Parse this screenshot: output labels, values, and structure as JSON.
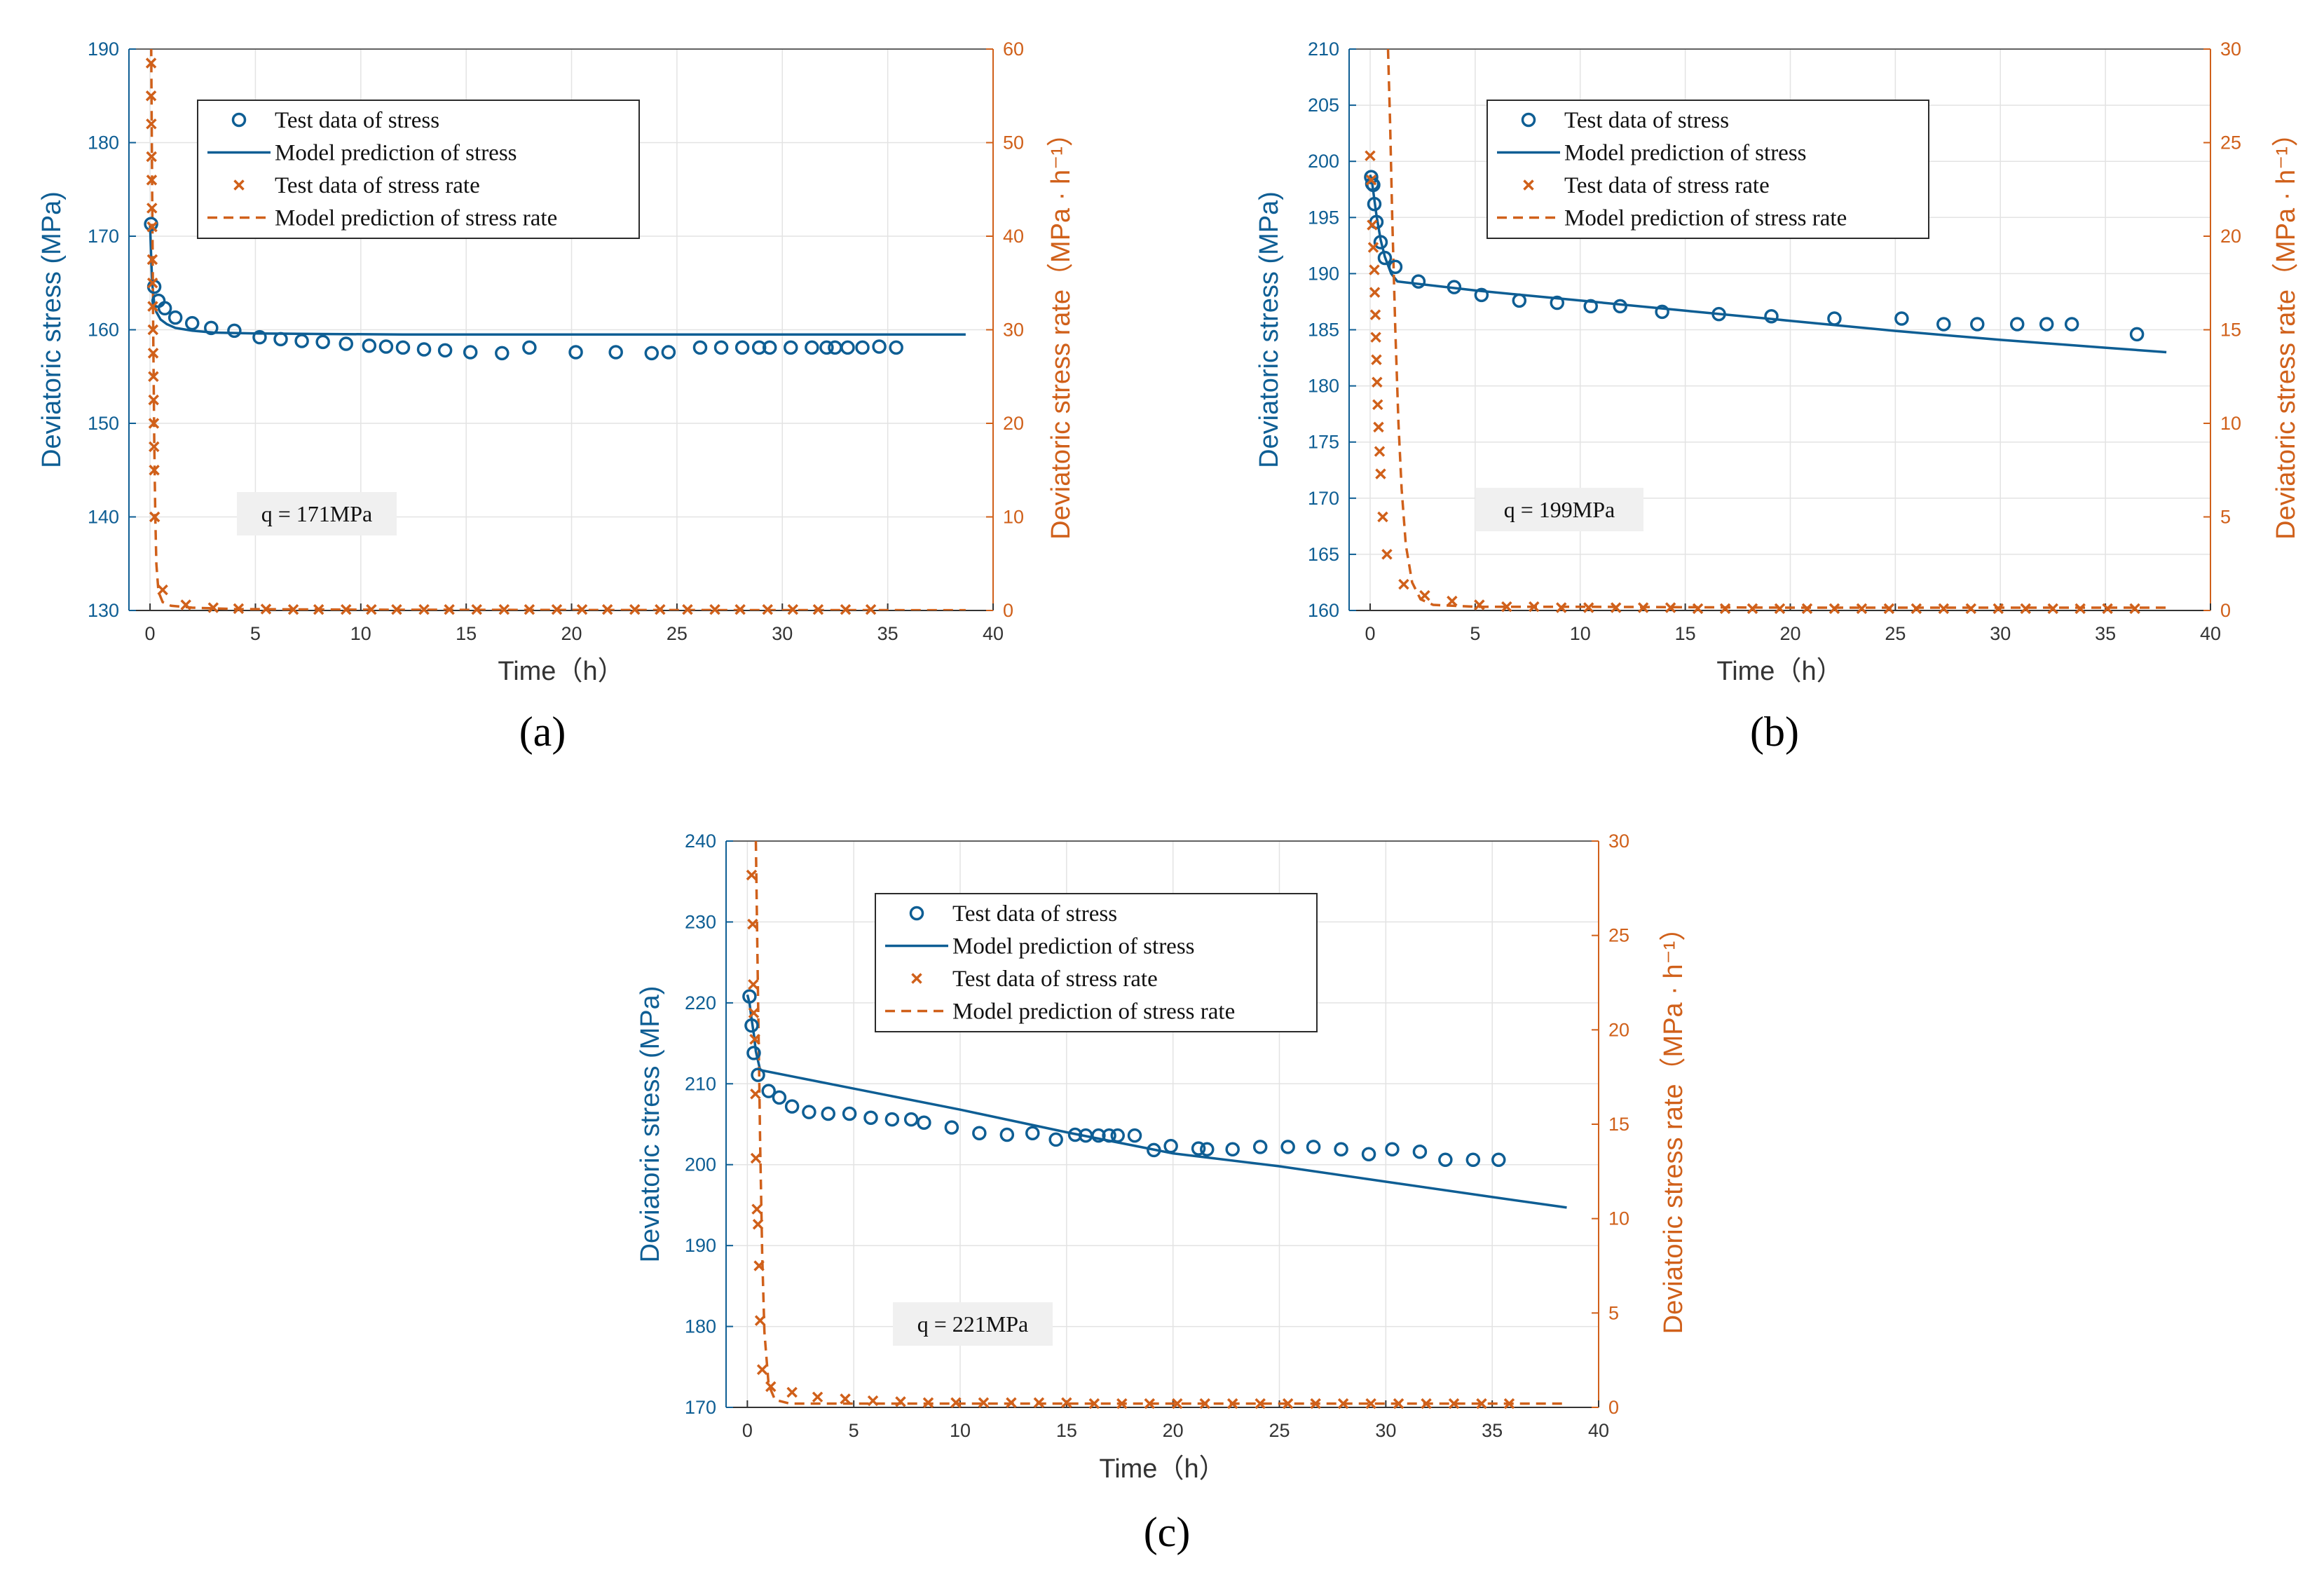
{
  "colors": {
    "stress": "#0e5e94",
    "rate": "#d0601a",
    "grid": "#e3e3e3",
    "axis": "#333333"
  },
  "legend": {
    "test_stress": "Test data of stress",
    "model_stress": "Model prediction of stress",
    "test_rate": "Test data of stress rate",
    "model_rate": "Model prediction of stress rate"
  },
  "chart_data": [
    {
      "id": "a",
      "type": "line",
      "caption": "(a)",
      "xlabel": "Time（h）",
      "ylabel_left": "Deviatoric stress (MPa)",
      "ylabel_right": "Deviatoric stress rate（MPa · h⁻¹）",
      "annotation": "q = 171MPa",
      "xlim": [
        -1,
        40
      ],
      "ylim_left": [
        130,
        190
      ],
      "ylim_right": [
        0,
        60
      ],
      "xticks": [
        0,
        5,
        10,
        15,
        20,
        25,
        30,
        35,
        40
      ],
      "yticks_left": [
        130,
        140,
        150,
        160,
        170,
        180,
        190
      ],
      "yticks_right": [
        0,
        10,
        20,
        30,
        40,
        50,
        60
      ],
      "series": [
        {
          "name": "Test data of stress",
          "axis": "left",
          "style": "circle",
          "x": [
            0.05,
            0.2,
            0.4,
            0.7,
            1.2,
            2,
            2.9,
            4,
            5.2,
            6.2,
            7.2,
            8.2,
            9.3,
            10.4,
            11.2,
            12,
            13,
            14,
            15.2,
            16.7,
            18,
            20.2,
            22.1,
            23.8,
            24.6,
            26.1,
            27.1,
            28.1,
            28.9,
            29.4,
            30.4,
            31.4,
            32.1,
            32.5,
            33.1,
            33.8,
            34.6,
            35.4
          ],
          "y": [
            171.3,
            164.6,
            163.1,
            162.3,
            161.3,
            160.7,
            160.2,
            159.9,
            159.2,
            159.0,
            158.8,
            158.7,
            158.5,
            158.3,
            158.2,
            158.1,
            157.9,
            157.8,
            157.6,
            157.5,
            158.1,
            157.6,
            157.6,
            157.5,
            157.6,
            158.1,
            158.1,
            158.1,
            158.1,
            158.1,
            158.1,
            158.1,
            158.1,
            158.1,
            158.1,
            158.1,
            158.2,
            158.1
          ]
        },
        {
          "name": "Model prediction of stress",
          "axis": "left",
          "style": "solid",
          "x": [
            0,
            0.05,
            0.1,
            0.2,
            0.3,
            0.5,
            0.8,
            1.2,
            2,
            3,
            5,
            8,
            12,
            20,
            30,
            38.7
          ],
          "y": [
            171.3,
            168.0,
            165.0,
            162.8,
            161.9,
            161.1,
            160.6,
            160.2,
            159.9,
            159.7,
            159.6,
            159.55,
            159.5,
            159.5,
            159.5,
            159.5
          ]
        },
        {
          "name": "Test data of stress rate",
          "axis": "right",
          "style": "cross",
          "x": [
            0.05,
            0.05,
            0.06,
            0.07,
            0.08,
            0.09,
            0.1,
            0.11,
            0.12,
            0.13,
            0.14,
            0.15,
            0.16,
            0.17,
            0.18,
            0.19,
            0.2,
            0.22,
            0.6,
            1.7,
            3,
            4.2,
            5.5,
            6.8,
            8,
            9.3,
            10.5,
            11.7,
            13,
            14.2,
            15.5,
            16.8,
            18,
            19.3,
            20.5,
            21.7,
            23,
            24.2,
            25.5,
            26.8,
            28,
            29.3,
            30.5,
            31.7,
            33,
            34.2
          ],
          "y": [
            58.5,
            55,
            52,
            48.5,
            46,
            43,
            41,
            37.5,
            35,
            32.5,
            30,
            27.5,
            25,
            22.5,
            20,
            17.5,
            15,
            10,
            2.2,
            0.6,
            0.3,
            0.2,
            0.15,
            0.1,
            0.1,
            0.1,
            0.1,
            0.1,
            0.1,
            0.1,
            0.1,
            0.1,
            0.1,
            0.1,
            0.1,
            0.1,
            0.1,
            0.1,
            0.1,
            0.1,
            0.1,
            0.1,
            0.1,
            0.1,
            0.1,
            0.1
          ]
        },
        {
          "name": "Model prediction of stress rate",
          "axis": "right",
          "style": "dashed",
          "x": [
            0.05,
            0.1,
            0.15,
            0.2,
            0.25,
            0.3,
            0.4,
            0.6,
            1,
            2,
            4,
            10,
            20,
            30,
            38.7
          ],
          "y": [
            62,
            45,
            30,
            18,
            10,
            5,
            2,
            0.9,
            0.5,
            0.3,
            0.15,
            0.08,
            0.05,
            0.04,
            0.03
          ]
        }
      ]
    },
    {
      "id": "b",
      "type": "line",
      "caption": "(b)",
      "xlabel": "Time（h）",
      "ylabel_left": "Deviatoric stress (MPa)",
      "ylabel_right": "Deviatoric stress rate（MPa · h⁻¹）",
      "annotation": "q = 199MPa",
      "xlim": [
        -1,
        40
      ],
      "ylim_left": [
        160,
        210
      ],
      "ylim_right": [
        0,
        30
      ],
      "xticks": [
        0,
        5,
        10,
        15,
        20,
        25,
        30,
        35,
        40
      ],
      "yticks_left": [
        160,
        165,
        170,
        175,
        180,
        185,
        190,
        195,
        200,
        205,
        210
      ],
      "yticks_right": [
        0,
        5,
        10,
        15,
        20,
        25,
        30
      ],
      "series": [
        {
          "name": "Test data of stress",
          "axis": "left",
          "style": "circle",
          "x": [
            0.05,
            0.1,
            0.15,
            0.2,
            0.3,
            0.5,
            0.7,
            1.2,
            2.3,
            4,
            5.3,
            7.1,
            8.9,
            10.5,
            11.9,
            13.9,
            16.6,
            19.1,
            22.1,
            25.3,
            27.3,
            28.9,
            30.8,
            32.2,
            33.4,
            36.5
          ],
          "y": [
            198.6,
            198.0,
            197.9,
            196.2,
            194.6,
            192.8,
            191.4,
            190.6,
            189.3,
            188.8,
            188.1,
            187.6,
            187.4,
            187.1,
            187.1,
            186.6,
            186.4,
            186.2,
            186.0,
            186.0,
            185.5,
            185.5,
            185.5,
            185.5,
            185.5,
            184.6
          ]
        },
        {
          "name": "Model prediction of stress",
          "axis": "left",
          "style": "solid",
          "x": [
            0,
            0.1,
            0.2,
            0.3,
            0.5,
            0.7,
            1,
            1.3,
            5,
            10,
            15,
            20,
            25,
            30,
            35,
            37.9
          ],
          "y": [
            198.8,
            198.0,
            196.6,
            195.2,
            193.0,
            191.5,
            190.0,
            189.3,
            188.5,
            187.6,
            186.7,
            185.8,
            184.9,
            184.1,
            183.4,
            183.0
          ]
        },
        {
          "name": "Test data of stress rate",
          "axis": "right",
          "style": "cross",
          "x": [
            0,
            0.05,
            0.1,
            0.15,
            0.2,
            0.22,
            0.25,
            0.27,
            0.3,
            0.33,
            0.36,
            0.4,
            0.45,
            0.5,
            0.6,
            0.8,
            1.6,
            2.6,
            3.9,
            5.2,
            6.5,
            7.8,
            9.1,
            10.4,
            11.7,
            13,
            14.3,
            15.6,
            16.9,
            18.2,
            19.5,
            20.8,
            22.1,
            23.4,
            24.7,
            26,
            27.3,
            28.6,
            29.9,
            31.2,
            32.5,
            33.8,
            35.1,
            36.4
          ],
          "y": [
            24.3,
            23.0,
            20.6,
            19.4,
            18.2,
            17.0,
            15.8,
            14.6,
            13.4,
            12.2,
            11.0,
            9.8,
            8.5,
            7.3,
            5.0,
            3.0,
            1.4,
            0.8,
            0.5,
            0.3,
            0.2,
            0.2,
            0.15,
            0.15,
            0.15,
            0.15,
            0.15,
            0.1,
            0.1,
            0.1,
            0.1,
            0.1,
            0.1,
            0.1,
            0.1,
            0.1,
            0.1,
            0.1,
            0.1,
            0.1,
            0.1,
            0.1,
            0.1,
            0.1
          ]
        },
        {
          "name": "Model prediction of stress rate",
          "axis": "right",
          "style": "dashed",
          "x": [
            0.85,
            0.95,
            1.05,
            1.2,
            1.35,
            1.5,
            1.7,
            2,
            2.4,
            3,
            5,
            10,
            20,
            30,
            37.9
          ],
          "y": [
            30,
            26,
            21,
            15,
            10,
            6.5,
            3.5,
            1.5,
            0.6,
            0.3,
            0.2,
            0.2,
            0.15,
            0.15,
            0.15
          ]
        }
      ]
    },
    {
      "id": "c",
      "type": "line",
      "caption": "(c)",
      "xlabel": "Time（h）",
      "ylabel_left": "Deviatoric stress (MPa)",
      "ylabel_right": "Deviatoric stress rate（MPa · h⁻¹）",
      "annotation": "q = 221MPa",
      "xlim": [
        -1,
        40
      ],
      "ylim_left": [
        170,
        240
      ],
      "ylim_right": [
        0,
        30
      ],
      "xticks": [
        0,
        5,
        10,
        15,
        20,
        25,
        30,
        35,
        40
      ],
      "yticks_left": [
        170,
        180,
        190,
        200,
        210,
        220,
        230,
        240
      ],
      "yticks_right": [
        0,
        5,
        10,
        15,
        20,
        25,
        30
      ],
      "series": [
        {
          "name": "Test data of stress",
          "axis": "left",
          "style": "circle",
          "x": [
            0.1,
            0.2,
            0.3,
            0.5,
            1,
            1.5,
            2.1,
            2.9,
            3.8,
            4.8,
            5.8,
            6.8,
            7.7,
            8.3,
            9.6,
            10.9,
            12.2,
            13.4,
            14.5,
            15.4,
            15.9,
            16.5,
            17,
            17.4,
            18.2,
            19.1,
            19.9,
            21.2,
            21.6,
            22.8,
            24.1,
            25.4,
            26.6,
            27.9,
            29.2,
            30.3,
            31.6,
            32.8,
            34.1,
            35.3
          ],
          "y": [
            220.8,
            217.2,
            213.8,
            211.1,
            209.1,
            208.3,
            207.2,
            206.5,
            206.3,
            206.3,
            205.8,
            205.6,
            205.6,
            205.2,
            204.6,
            203.9,
            203.7,
            203.9,
            203.1,
            203.7,
            203.6,
            203.6,
            203.6,
            203.6,
            203.6,
            201.8,
            202.3,
            202.0,
            201.9,
            201.9,
            202.2,
            202.2,
            202.2,
            201.9,
            201.3,
            201.9,
            201.6,
            200.6,
            200.6,
            200.6
          ]
        },
        {
          "name": "Model prediction of stress",
          "axis": "left",
          "style": "solid",
          "x": [
            0,
            0.1,
            0.2,
            0.3,
            0.4,
            0.6,
            5,
            10,
            15,
            20,
            25,
            30,
            35,
            38.5
          ],
          "y": [
            221,
            220.0,
            218.0,
            216.2,
            214.0,
            211.7,
            209.4,
            206.8,
            204.0,
            201.4,
            199.8,
            197.9,
            196.0,
            194.7
          ]
        },
        {
          "name": "Test data of stress rate",
          "axis": "right",
          "style": "cross",
          "x": [
            0.2,
            0.25,
            0.28,
            0.3,
            0.35,
            0.38,
            0.4,
            0.45,
            0.5,
            0.55,
            0.6,
            0.7,
            1.1,
            2.1,
            3.3,
            4.6,
            5.9,
            7.2,
            8.5,
            9.8,
            11.1,
            12.4,
            13.7,
            15,
            16.3,
            17.6,
            18.9,
            20.2,
            21.5,
            22.8,
            24.1,
            25.4,
            26.7,
            28,
            29.3,
            30.6,
            31.9,
            33.2,
            34.5,
            35.8
          ],
          "y": [
            28.2,
            25.6,
            22.4,
            20.9,
            19.5,
            16.6,
            13.2,
            10.5,
            9.7,
            7.5,
            4.6,
            2.0,
            1.1,
            0.8,
            0.55,
            0.45,
            0.35,
            0.3,
            0.25,
            0.25,
            0.25,
            0.25,
            0.25,
            0.25,
            0.2,
            0.2,
            0.2,
            0.2,
            0.2,
            0.2,
            0.2,
            0.2,
            0.2,
            0.2,
            0.2,
            0.2,
            0.2,
            0.2,
            0.2,
            0.2
          ]
        },
        {
          "name": "Model prediction of stress rate",
          "axis": "right",
          "style": "dashed",
          "x": [
            0.4,
            0.45,
            0.5,
            0.55,
            0.6,
            0.7,
            0.8,
            1,
            1.3,
            2,
            5,
            10,
            20,
            30,
            38.5
          ],
          "y": [
            30,
            26,
            22,
            18,
            14,
            8,
            4,
            1.2,
            0.4,
            0.2,
            0.2,
            0.2,
            0.2,
            0.2,
            0.2
          ]
        }
      ]
    }
  ]
}
